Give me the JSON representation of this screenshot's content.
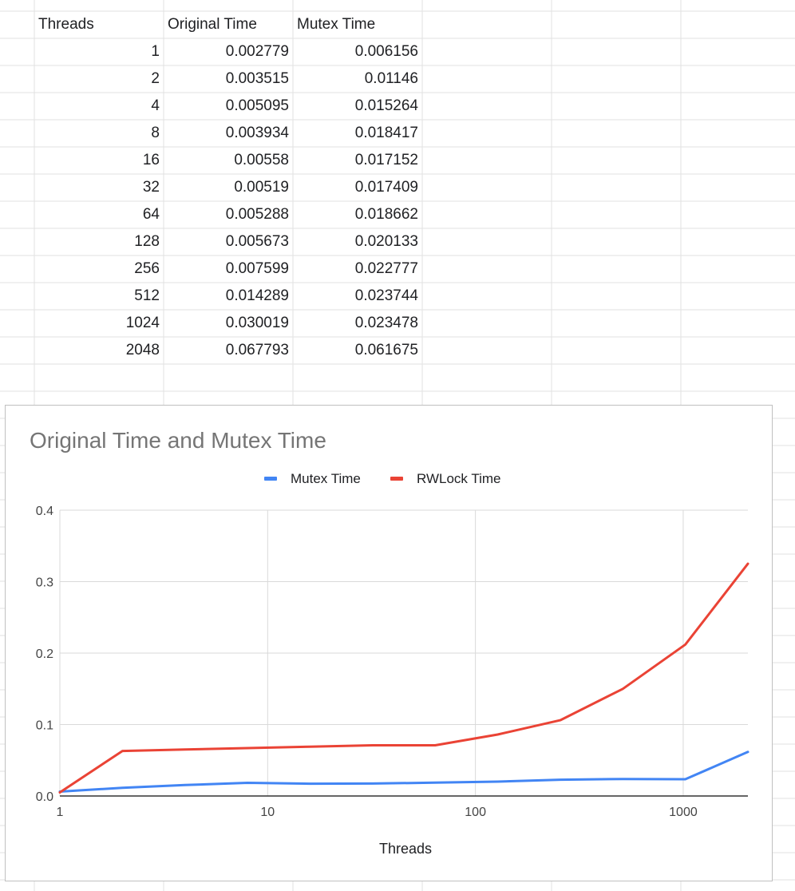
{
  "sheet": {
    "headers": [
      "Threads",
      "Original Time",
      "Mutex Time"
    ],
    "rows": [
      [
        "1",
        "0.002779",
        "0.006156"
      ],
      [
        "2",
        "0.003515",
        "0.01146"
      ],
      [
        "4",
        "0.005095",
        "0.015264"
      ],
      [
        "8",
        "0.003934",
        "0.018417"
      ],
      [
        "16",
        "0.00558",
        "0.017152"
      ],
      [
        "32",
        "0.00519",
        "0.017409"
      ],
      [
        "64",
        "0.005288",
        "0.018662"
      ],
      [
        "128",
        "0.005673",
        "0.020133"
      ],
      [
        "256",
        "0.007599",
        "0.022777"
      ],
      [
        "512",
        "0.014289",
        "0.023744"
      ],
      [
        "1024",
        "0.030019",
        "0.023478"
      ],
      [
        "2048",
        "0.067793",
        "0.061675"
      ]
    ]
  },
  "chart_data": {
    "type": "line",
    "title": "Original Time and Mutex Time",
    "xlabel": "Threads",
    "ylabel": "",
    "xscale": "log",
    "xlim": [
      1,
      2048
    ],
    "ylim": [
      0,
      0.4
    ],
    "xticks": [
      "1",
      "10",
      "100",
      "1000"
    ],
    "yticks": [
      "0.0",
      "0.1",
      "0.2",
      "0.3",
      "0.4"
    ],
    "grid": true,
    "legend": "top-center",
    "x": [
      1,
      2,
      4,
      8,
      16,
      32,
      64,
      128,
      256,
      512,
      1024,
      2048
    ],
    "series": [
      {
        "name": "Mutex Time",
        "color": "#4285f4",
        "values": [
          0.006156,
          0.01146,
          0.015264,
          0.018417,
          0.017152,
          0.017409,
          0.018662,
          0.020133,
          0.022777,
          0.023744,
          0.023478,
          0.061675
        ]
      },
      {
        "name": "RWLock Time",
        "color": "#ea4335",
        "values": [
          0.005,
          0.063,
          0.065,
          0.067,
          0.069,
          0.071,
          0.071,
          0.086,
          0.106,
          0.15,
          0.212,
          0.325
        ]
      }
    ]
  }
}
